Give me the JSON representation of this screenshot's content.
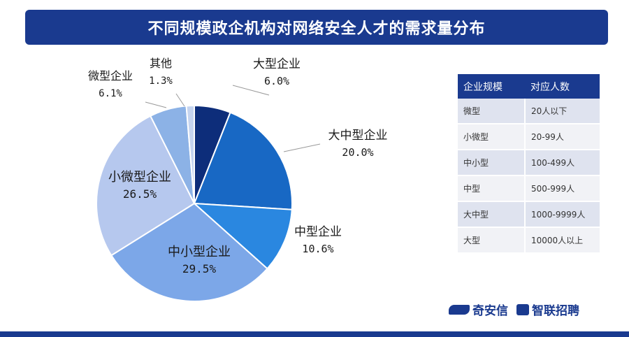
{
  "header": {
    "title": "不同规模政企机构对网络安全人才的需求量分布"
  },
  "chart_data": {
    "type": "pie",
    "title": "不同规模政企机构对网络安全人才的需求量分布",
    "slices": [
      {
        "label": "大型企业",
        "value": "6.0%",
        "pct": 6.0,
        "color": "#0d2d7a"
      },
      {
        "label": "大中型企业",
        "value": "20.0%",
        "pct": 20.0,
        "color": "#1868c4"
      },
      {
        "label": "中型企业",
        "value": "10.6%",
        "pct": 10.6,
        "color": "#2a87e0"
      },
      {
        "label": "中小型企业",
        "value": "29.5%",
        "pct": 29.5,
        "color": "#7ca7e8"
      },
      {
        "label": "小微型企业",
        "value": "26.5%",
        "pct": 26.5,
        "color": "#b6c8ee"
      },
      {
        "label": "微型企业",
        "value": "6.1%",
        "pct": 6.1,
        "color": "#8cb2e6"
      },
      {
        "label": "其他",
        "value": "1.3%",
        "pct": 1.3,
        "color": "#c5d4ef"
      }
    ]
  },
  "size_table": {
    "headers": [
      "企业规模",
      "对应人数"
    ],
    "rows": [
      [
        "微型",
        "20人以下"
      ],
      [
        "小微型",
        "20-99人"
      ],
      [
        "中小型",
        "100-499人"
      ],
      [
        "中型",
        "500-999人"
      ],
      [
        "大中型",
        "1000-9999人"
      ],
      [
        "大型",
        "10000人以上"
      ]
    ]
  },
  "footer": {
    "logo_qianxin": "奇安信",
    "logo_zhilian": "智联招聘"
  }
}
